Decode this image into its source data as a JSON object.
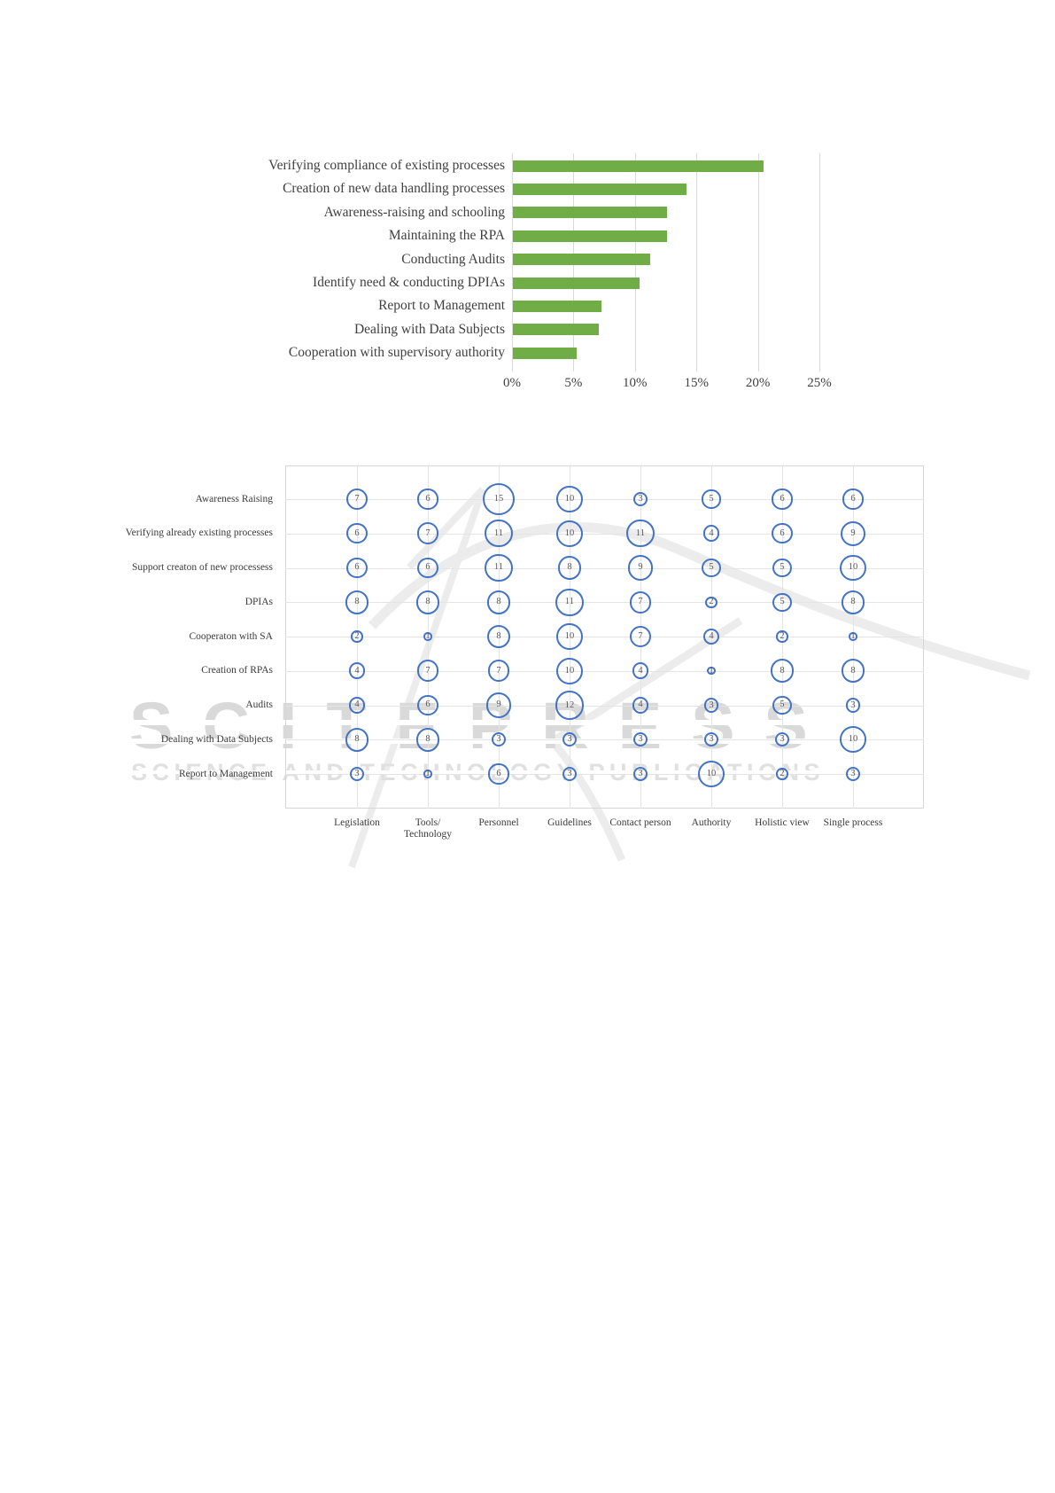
{
  "watermark": {
    "title": "SCITEPRESS",
    "subtitle": "SCIENCE AND TECHNOLOGY PUBLICATIONS",
    "title_color": "#d9d9d9",
    "subtitle_color": "#e0e0e0"
  },
  "chart_data": [
    {
      "type": "bar",
      "orientation": "horizontal",
      "title": "",
      "xlabel": "",
      "ylabel": "",
      "categories": [
        "Verifying compliance of existing processes",
        "Creation of new data handling processes",
        "Awareness-raising and schooling",
        "Maintaining the RPA",
        "Conducting Audits",
        "Identify need & conducting DPIAs",
        "Report to Management",
        "Dealing with Data Subjects",
        "Cooperation with supervisory authority"
      ],
      "values": [
        20.4,
        14.1,
        12.5,
        12.5,
        11.2,
        10.3,
        7.2,
        7.0,
        5.2
      ],
      "unit": "%",
      "xlim": [
        0,
        25
      ],
      "xticks": [
        "0%",
        "5%",
        "10%",
        "15%",
        "20%",
        "25%"
      ],
      "bar_color": "#70ad47",
      "grid": true,
      "legend": false
    },
    {
      "type": "bubble",
      "title": "",
      "size_encoding": "circle area proportional to value",
      "bubble_color": "#4472c4",
      "grid": true,
      "columns": [
        "Legislation",
        "Tools/\nTechnology",
        "Personnel",
        "Guidelines",
        "Contact person",
        "Authority",
        "Holistic view",
        "Single process"
      ],
      "rows": [
        "Awareness Raising",
        "Verifying already existing processes",
        "Support creaton of new processess",
        "DPIAs",
        "Cooperaton with SA",
        "Creation of RPAs",
        "Audits",
        "Dealing with Data Subjects",
        "Report to Management"
      ],
      "values": [
        [
          7,
          6,
          15,
          10,
          3,
          5,
          6,
          6
        ],
        [
          6,
          7,
          11,
          10,
          11,
          4,
          6,
          9
        ],
        [
          6,
          6,
          11,
          8,
          9,
          5,
          5,
          10
        ],
        [
          8,
          8,
          8,
          11,
          7,
          2,
          5,
          8
        ],
        [
          2,
          1,
          8,
          10,
          7,
          4,
          2,
          1
        ],
        [
          4,
          7,
          7,
          10,
          4,
          1,
          8,
          8
        ],
        [
          4,
          6,
          9,
          12,
          4,
          3,
          5,
          3
        ],
        [
          8,
          8,
          3,
          3,
          3,
          3,
          3,
          10
        ],
        [
          3,
          1,
          6,
          3,
          3,
          10,
          2,
          3
        ]
      ]
    }
  ]
}
